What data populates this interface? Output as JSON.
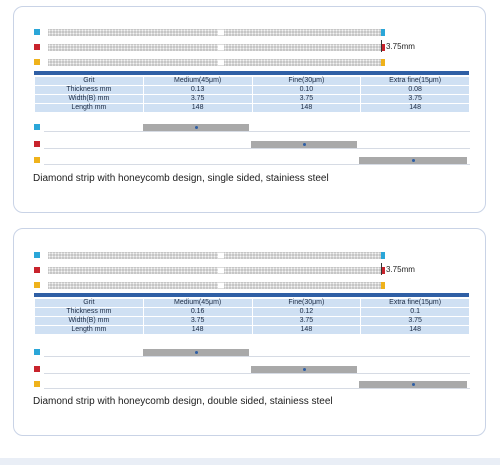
{
  "colors": {
    "cyan": "#2aa6d8",
    "red": "#c8232c",
    "yellow": "#efb21b",
    "header_blue": "#2f5fa5",
    "table_cell": "#cfe0f3",
    "strip_gray": "#a9a9a9"
  },
  "panels": [
    {
      "dimension_label": "3.75mm",
      "table": {
        "headers": [
          "Grit",
          "Medium(45μm)",
          "Fine(30μm)",
          "Extra fine(15μm)"
        ],
        "rows": [
          {
            "label": "Thickness mm",
            "values": [
              "0.13",
              "0.10",
              "0.08"
            ]
          },
          {
            "label": "Width(B) mm",
            "values": [
              "3.75",
              "3.75",
              "3.75"
            ]
          },
          {
            "label": "Length mm",
            "values": [
              "148",
              "148",
              "148"
            ]
          }
        ]
      },
      "caption": "Diamond strip with honeycomb design, single sided, stainiess steel"
    },
    {
      "dimension_label": "3.75mm",
      "table": {
        "headers": [
          "Grit",
          "Medium(45μm)",
          "Fine(30μm)",
          "Extra fine(15μm)"
        ],
        "rows": [
          {
            "label": "Thickness mm",
            "values": [
              "0.16",
              "0.12",
              "0.1"
            ]
          },
          {
            "label": "Width(B) mm",
            "values": [
              "3.75",
              "3.75",
              "3.75"
            ]
          },
          {
            "label": "Length mm",
            "values": [
              "148",
              "148",
              "148"
            ]
          }
        ]
      },
      "caption": "Diamond strip with honeycomb design, double sided, stainiess steel"
    }
  ]
}
